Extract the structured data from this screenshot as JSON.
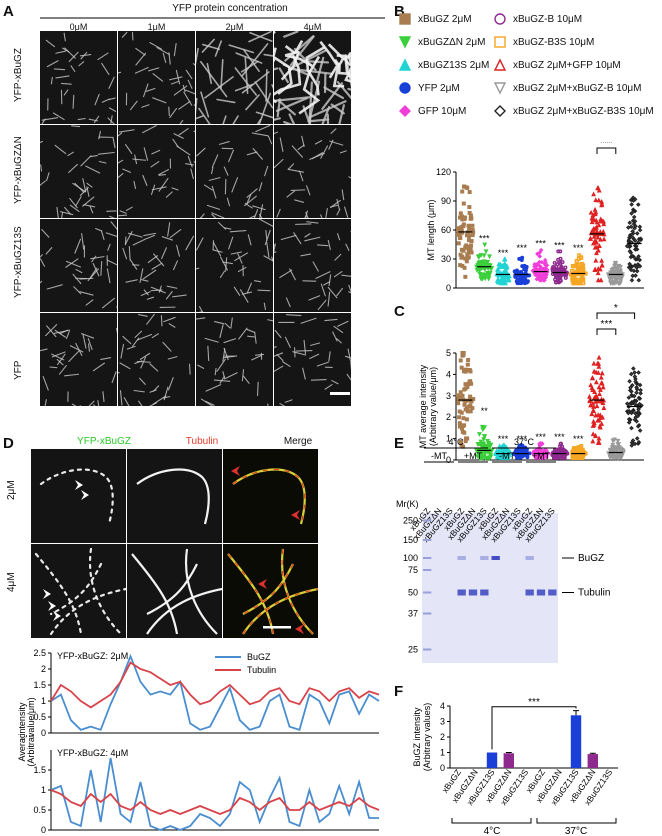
{
  "panel_letters": {
    "a": "A",
    "b": "B",
    "c": "C",
    "d": "D",
    "e": "E",
    "f": "F"
  },
  "panel_a": {
    "header": "YFP protein concentration",
    "columns": [
      "0μM",
      "1μM",
      "2μM",
      "4μM"
    ],
    "rows": [
      "YFP-xBuGZ",
      "YFP-xBuGZΔN",
      "YFP-xBuGZ13S",
      "YFP"
    ]
  },
  "legend_b": [
    {
      "label": "xBuGZ 2μM",
      "color": "#a97c50",
      "shape": "square-filled"
    },
    {
      "label": "xBuGZ-B 10μM",
      "color": "#8e2a8e",
      "shape": "circle-open"
    },
    {
      "label": "xBuGZΔN 2μM",
      "color": "#3ccf3c",
      "shape": "triangle-down-filled"
    },
    {
      "label": "xBuGZ-B3S 10μM",
      "color": "#f5a623",
      "shape": "square-open"
    },
    {
      "label": "xBuGZ13S 2μM",
      "color": "#21d4d4",
      "shape": "triangle-up-filled"
    },
    {
      "label": "xBuGZ 2μM+GFP 10μM",
      "color": "#e02020",
      "shape": "triangle-up-open"
    },
    {
      "label": "YFP 2μM",
      "color": "#1a3fd8",
      "shape": "circle-filled"
    },
    {
      "label": "xBuGZ 2μM+xBuGZ-B 10μM",
      "color": "#999999",
      "shape": "triangle-down-open"
    },
    {
      "label": "GFP 10μM",
      "color": "#f03fd8",
      "shape": "diamond-filled"
    },
    {
      "label": "xBuGZ 2μM+xBuGZ-B3S 10μM",
      "color": "#222222",
      "shape": "diamond-open"
    }
  ],
  "chart_data": [
    {
      "id": "B",
      "type": "scatter",
      "ylabel": "MT length (μm)",
      "ylim": [
        0,
        120
      ],
      "yticks": [
        0,
        30,
        60,
        90,
        120
      ],
      "groups": [
        "xBuGZ 2μM",
        "xBuGZΔN 2μM",
        "xBuGZ13S 2μM",
        "YFP 2μM",
        "GFP 10μM",
        "xBuGZ-B 10μM",
        "xBuGZ-B3S 10μM",
        "xBuGZ 2μM+GFP 10μM",
        "xBuGZ 2μM+xBuGZ-B 10μM",
        "xBuGZ 2μM+xBuGZ-B3S 10μM"
      ],
      "colors": [
        "#a97c50",
        "#3ccf3c",
        "#21d4d4",
        "#1a3fd8",
        "#f03fd8",
        "#8e2a8e",
        "#f5a623",
        "#e02020",
        "#999999",
        "#222222"
      ],
      "means": [
        58,
        22,
        14,
        14,
        17,
        16,
        15,
        56,
        14,
        46
      ],
      "mins": [
        8,
        10,
        5,
        5,
        8,
        6,
        5,
        8,
        5,
        8
      ],
      "maxs": [
        110,
        45,
        30,
        35,
        40,
        38,
        35,
        105,
        30,
        95
      ],
      "annotations": [
        "",
        "***",
        "***",
        "***",
        "***",
        "***",
        "***",
        "",
        "",
        ""
      ],
      "brackets": [
        {
          "from": 7,
          "to": 8,
          "label": "***"
        },
        {
          "from": 7,
          "to": 9,
          "label": "*"
        }
      ]
    },
    {
      "id": "C",
      "type": "scatter",
      "ylabel": "MT average intensity (Arbitrary value/μm)",
      "ylim": [
        0,
        5
      ],
      "yticks": [
        0,
        1,
        2,
        3,
        4,
        5
      ],
      "groups": [
        "xBuGZ 2μM",
        "xBuGZΔN 2μM",
        "xBuGZ13S 2μM",
        "YFP 2μM",
        "GFP 10μM",
        "xBuGZ-B 10μM",
        "xBuGZ-B3S 10μM",
        "xBuGZ 2μM+GFP 10μM",
        "xBuGZ 2μM+xBuGZ-B 10μM",
        "xBuGZ 2μM+xBuGZ-B3S 10μM"
      ],
      "colors": [
        "#a97c50",
        "#3ccf3c",
        "#21d4d4",
        "#1a3fd8",
        "#f03fd8",
        "#8e2a8e",
        "#f5a623",
        "#e02020",
        "#999999",
        "#222222"
      ],
      "means": [
        2.8,
        0.45,
        0.3,
        0.3,
        0.3,
        0.3,
        0.3,
        2.8,
        0.35,
        2.5
      ],
      "mins": [
        0.5,
        0.1,
        0.1,
        0.1,
        0.1,
        0.1,
        0.1,
        0.8,
        0.1,
        0.6
      ],
      "maxs": [
        5.0,
        2.0,
        0.7,
        0.7,
        0.8,
        0.8,
        0.7,
        5.0,
        1.2,
        4.3
      ],
      "annotations": [
        "",
        "**",
        "***",
        "***",
        "***",
        "***",
        "***",
        "",
        "",
        ""
      ],
      "brackets": [
        {
          "from": 7,
          "to": 8,
          "label": "***"
        },
        {
          "from": 7,
          "to": 9,
          "label": "*"
        }
      ]
    },
    {
      "id": "D-top",
      "type": "line",
      "title": "YFP-xBuGZ: 2μM",
      "ylabel": "Average intensity (Arbitrary value/μm)",
      "ylim": [
        0,
        2.5
      ],
      "yticks": [
        0,
        0.5,
        1,
        1.5,
        2,
        2.5
      ],
      "series": [
        {
          "name": "BuGZ",
          "color": "#4a8ed0",
          "values": [
            1.0,
            1.2,
            0.4,
            0.1,
            0.2,
            0.1,
            0.9,
            1.6,
            2.4,
            1.6,
            1.2,
            1.3,
            1.2,
            1.6,
            0.3,
            0.1,
            0.2,
            0.8,
            1.4,
            0.4,
            0.1,
            0.2,
            1.0,
            1.2,
            0.2,
            0.1,
            1.2,
            1.0,
            0.3,
            1.2,
            1.3,
            0.6,
            1.2,
            1.0
          ]
        },
        {
          "name": "Tubulin",
          "color": "#d8434a",
          "values": [
            1.0,
            1.5,
            1.3,
            1.0,
            0.8,
            1.0,
            1.2,
            1.6,
            2.2,
            2.0,
            1.9,
            1.7,
            1.5,
            1.6,
            1.2,
            0.9,
            1.0,
            1.3,
            1.5,
            1.2,
            0.9,
            1.0,
            1.3,
            1.4,
            1.0,
            0.9,
            1.4,
            1.3,
            1.0,
            1.3,
            1.4,
            1.1,
            1.3,
            1.2
          ]
        }
      ]
    },
    {
      "id": "D-bottom",
      "type": "line",
      "title": "YFP-xBuGZ: 4μM",
      "ylim": [
        0,
        2.0
      ],
      "yticks": [
        0,
        0.5,
        1,
        1.5
      ],
      "series": [
        {
          "name": "BuGZ",
          "color": "#4a8ed0",
          "values": [
            1.0,
            1.1,
            0.2,
            0.1,
            1.5,
            0.2,
            1.8,
            0.4,
            0.2,
            1.2,
            0.1,
            0.0,
            0.1,
            0.0,
            0.1,
            0.4,
            0.3,
            0.1,
            0.4,
            1.2,
            1.0,
            0.2,
            0.8,
            1.3,
            0.2,
            0.1,
            1.0,
            0.2,
            0.4,
            1.1,
            0.4,
            1.2,
            0.3,
            0.3
          ]
        },
        {
          "name": "Tubulin",
          "color": "#d8434a",
          "values": [
            1.0,
            0.9,
            0.7,
            0.6,
            0.9,
            0.7,
            0.9,
            0.6,
            0.5,
            0.7,
            0.5,
            0.4,
            0.5,
            0.4,
            0.5,
            0.6,
            0.5,
            0.4,
            0.5,
            0.8,
            0.7,
            0.5,
            0.7,
            0.8,
            0.5,
            0.5,
            0.7,
            0.5,
            0.6,
            0.7,
            0.6,
            0.8,
            0.6,
            0.5
          ]
        }
      ]
    },
    {
      "id": "F",
      "type": "bar",
      "ylabel": "BuGZ intensity (Arbitrary values)",
      "ylim": [
        0,
        4
      ],
      "yticks": [
        0,
        1,
        2,
        3,
        4
      ],
      "categories": [
        "xBuGZ",
        "xBuGZΔN",
        "xBuGZ13S",
        "xBuGZΔN",
        "xBuGZ13S",
        "xBuGZ",
        "xBuGZΔN",
        "xBuGZ13S",
        "xBuGZΔN",
        "xBuGZ13S"
      ],
      "values": [
        0,
        0,
        1.0,
        0.95,
        0,
        0,
        0,
        3.4,
        0.9,
        0
      ],
      "errors": [
        0,
        0,
        0,
        0.05,
        0,
        0,
        0,
        0.3,
        0.05,
        0
      ],
      "colors": [
        "#1a3fd8",
        "#1a3fd8",
        "#1a3fd8",
        "#8e2a8e",
        "#8e2a8e",
        "#1a3fd8",
        "#1a3fd8",
        "#1a3fd8",
        "#8e2a8e",
        "#8e2a8e"
      ],
      "groups": [
        "4°C",
        "37°C"
      ],
      "significance": "***"
    }
  ],
  "panel_d": {
    "channels": [
      {
        "label": "YFP-xBuGZ",
        "color": "#28c828"
      },
      {
        "label": "Tubulin",
        "color": "#e03a2a"
      },
      {
        "label": "Merge",
        "color": "#111111"
      }
    ],
    "rows": [
      "2μM",
      "4μM"
    ]
  },
  "panel_e": {
    "temps": [
      "4°C",
      "37°C"
    ],
    "conds": [
      "-MT",
      "+MT",
      "-MT",
      "+MT"
    ],
    "lanes": [
      "xBuGZ",
      "xBuGZΔN",
      "xBuGZ13S",
      "xBuGZ",
      "xBuGZΔN",
      "xBuGZ13S",
      "xBuGZ",
      "xBuGZΔN",
      "xBuGZ13S",
      "xBuGZ",
      "xBuGZΔN",
      "xBuGZ13S"
    ],
    "mr_label": "Mr(K)",
    "markers": [
      "250",
      "150",
      "100",
      "75",
      "50",
      "37",
      "25"
    ],
    "band_labels": [
      "BuGZ",
      "Tubulin"
    ]
  }
}
